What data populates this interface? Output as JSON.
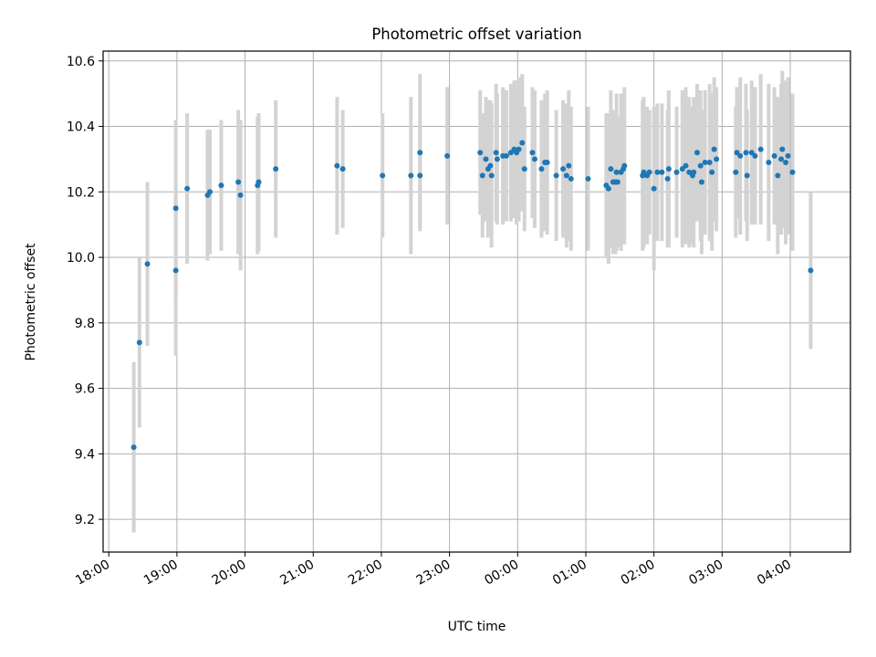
{
  "chart_data": {
    "type": "scatter",
    "title": "Photometric offset variation",
    "xlabel": "UTC time",
    "ylabel": "Photometric offset",
    "x_is_time": true,
    "xlim": [
      "17:55",
      "04:53"
    ],
    "ylim": [
      9.1,
      10.63
    ],
    "xticks": [
      "18:00",
      "19:00",
      "20:00",
      "21:00",
      "22:00",
      "23:00",
      "00:00",
      "01:00",
      "02:00",
      "03:00",
      "04:00"
    ],
    "yticks": [
      "9.2",
      "9.4",
      "9.6",
      "9.8",
      "10.0",
      "10.2",
      "10.4",
      "10.6"
    ],
    "grid": true,
    "legend": "none",
    "colors": {
      "points": "#1f77b4",
      "errorbars": "#d3d3d3",
      "grid": "#b0b0b0",
      "axes": "#000000"
    },
    "series": [
      {
        "x": [
          "18:22",
          "18:27",
          "18:34",
          "18:59",
          "18:59",
          "19:09",
          "19:27",
          "19:29",
          "19:39",
          "19:54",
          "19:56",
          "20:11",
          "20:12",
          "20:27",
          "21:21",
          "21:26",
          "22:01",
          "22:26",
          "22:34",
          "22:34",
          "22:58",
          "23:27",
          "23:29",
          "23:32",
          "23:34",
          "23:36",
          "23:37",
          "23:41",
          "23:42",
          "23:47",
          "23:50",
          "23:54",
          "23:57",
          "23:59",
          "24:01",
          "24:04",
          "24:06",
          "24:13",
          "24:15",
          "24:21",
          "24:24",
          "24:26",
          "24:34",
          "24:40",
          "24:43",
          "24:45",
          "24:47",
          "25:02",
          "25:18",
          "25:20",
          "25:22",
          "25:24",
          "25:26",
          "25:27",
          "25:28",
          "25:31",
          "25:33",
          "25:34",
          "25:50",
          "25:51",
          "25:54",
          "25:56",
          "26:00",
          "26:03",
          "26:07",
          "26:12",
          "26:13",
          "26:20",
          "26:25",
          "26:28",
          "26:31",
          "26:34",
          "26:35",
          "26:38",
          "26:41",
          "26:42",
          "26:45",
          "26:49",
          "26:51",
          "26:53",
          "26:55",
          "27:12",
          "27:13",
          "27:16",
          "27:21",
          "27:22",
          "27:26",
          "27:29",
          "27:34",
          "27:41",
          "27:46",
          "27:49",
          "27:52",
          "27:53",
          "27:56",
          "27:58",
          "28:02",
          "28:18"
        ],
        "y": [
          9.42,
          9.74,
          9.98,
          10.15,
          9.96,
          10.21,
          10.19,
          10.2,
          10.22,
          10.23,
          10.19,
          10.22,
          10.23,
          10.27,
          10.28,
          10.27,
          10.25,
          10.25,
          10.32,
          10.25,
          10.31,
          10.32,
          10.25,
          10.3,
          10.27,
          10.28,
          10.25,
          10.32,
          10.3,
          10.31,
          10.31,
          10.32,
          10.33,
          10.32,
          10.33,
          10.35,
          10.27,
          10.32,
          10.3,
          10.27,
          10.29,
          10.29,
          10.25,
          10.27,
          10.25,
          10.28,
          10.24,
          10.24,
          10.22,
          10.21,
          10.27,
          10.23,
          10.23,
          10.26,
          10.23,
          10.26,
          10.27,
          10.28,
          10.25,
          10.26,
          10.25,
          10.26,
          10.21,
          10.26,
          10.26,
          10.24,
          10.27,
          10.26,
          10.27,
          10.28,
          10.26,
          10.25,
          10.26,
          10.32,
          10.28,
          10.23,
          10.29,
          10.29,
          10.26,
          10.33,
          10.3,
          10.26,
          10.32,
          10.31,
          10.32,
          10.25,
          10.32,
          10.31,
          10.33,
          10.29,
          10.31,
          10.25,
          10.3,
          10.33,
          10.29,
          10.31,
          10.26,
          9.96
        ],
        "yerr": [
          0.26,
          0.26,
          0.25,
          0.27,
          0.26,
          0.23,
          0.2,
          0.19,
          0.2,
          0.22,
          0.23,
          0.21,
          0.21,
          0.21,
          0.21,
          0.18,
          0.19,
          0.24,
          0.24,
          0.16,
          0.21,
          0.19,
          0.19,
          0.19,
          0.21,
          0.2,
          0.22,
          0.21,
          0.2,
          0.21,
          0.2,
          0.21,
          0.21,
          0.22,
          0.22,
          0.21,
          0.19,
          0.2,
          0.21,
          0.21,
          0.21,
          0.22,
          0.2,
          0.21,
          0.22,
          0.23,
          0.22,
          0.22,
          0.22,
          0.23,
          0.24,
          0.22,
          0.22,
          0.24,
          0.2,
          0.24,
          0.23,
          0.24,
          0.23,
          0.23,
          0.21,
          0.19,
          0.25,
          0.21,
          0.21,
          0.21,
          0.24,
          0.2,
          0.24,
          0.24,
          0.23,
          0.21,
          0.23,
          0.21,
          0.23,
          0.22,
          0.22,
          0.24,
          0.24,
          0.22,
          0.22,
          0.2,
          0.2,
          0.24,
          0.21,
          0.2,
          0.22,
          0.21,
          0.23,
          0.24,
          0.21,
          0.24,
          0.23,
          0.24,
          0.25,
          0.24,
          0.24,
          0.24
        ]
      }
    ]
  }
}
